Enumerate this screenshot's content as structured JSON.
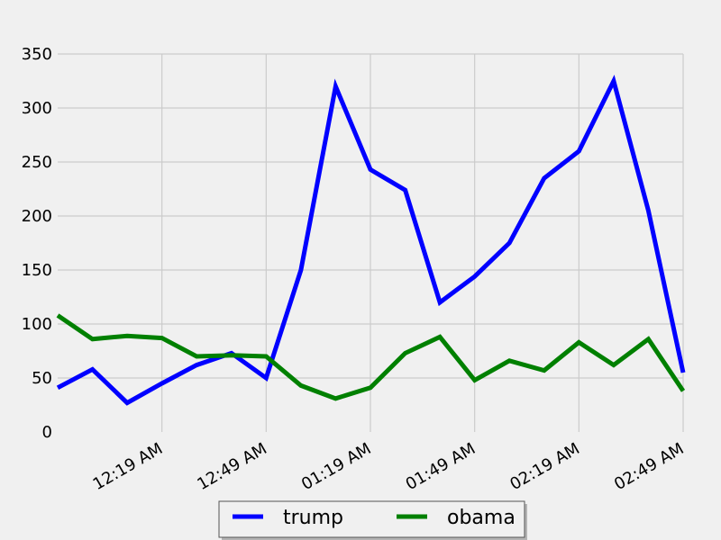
{
  "chart_data": {
    "type": "line",
    "title": "",
    "xlabel": "",
    "ylabel": "",
    "ylim": [
      0,
      350
    ],
    "yticks": [
      0,
      50,
      100,
      150,
      200,
      250,
      300,
      350
    ],
    "xtick_labels": [
      "12:19 AM",
      "12:49 AM",
      "01:19 AM",
      "01:49 AM",
      "02:19 AM",
      "02:49 AM"
    ],
    "grid": true,
    "legend_position": "bottom-center",
    "background_color": "#f0f0f0",
    "grid_color": "#cbcbcb",
    "series": [
      {
        "name": "trump",
        "color": "#0000ff",
        "values": [
          41,
          58,
          27,
          45,
          62,
          73,
          50,
          150,
          320,
          243,
          224,
          120,
          144,
          175,
          235,
          260,
          325,
          205,
          55
        ]
      },
      {
        "name": "obama",
        "color": "#008000",
        "values": [
          108,
          86,
          89,
          87,
          70,
          71,
          70,
          43,
          31,
          41,
          73,
          88,
          48,
          66,
          57,
          83,
          62,
          86,
          38
        ]
      }
    ]
  }
}
